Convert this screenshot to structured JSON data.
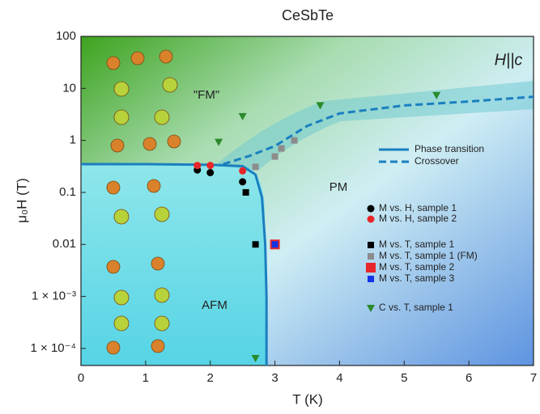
{
  "chart_data": {
    "type": "scatter",
    "title": "CeSbTe",
    "xlabel": "T (K)",
    "ylabel": "μ₀H (T)",
    "yscale": "log",
    "xlim": [
      0,
      7
    ],
    "ylim": [
      4.7e-05,
      100
    ],
    "xticks": [
      0,
      1,
      2,
      3,
      4,
      5,
      6,
      7
    ],
    "yticks": [
      100,
      10,
      1,
      0.1,
      0.01,
      {
        "value": 0.001,
        "label": "1 × 10⁻³"
      },
      {
        "value": 0.0001,
        "label": "1 × 10⁻⁴"
      }
    ],
    "annotations": [
      "H||c",
      "\"FM\"",
      "PM",
      "AFM"
    ],
    "series": [
      {
        "name": "Phase transition",
        "kind": "line",
        "linestyle": "solid",
        "color": "#1a7fc0",
        "x": [
          0,
          1,
          2,
          2.5,
          2.7,
          2.8,
          2.85,
          2.87,
          2.87
        ],
        "values": [
          0.35,
          0.35,
          0.34,
          0.32,
          0.22,
          0.08,
          0.01,
          0.001,
          4.7e-05
        ]
      },
      {
        "name": "Crossover",
        "kind": "line",
        "linestyle": "dashed",
        "color": "#1a7fc0",
        "x": [
          2.2,
          2.6,
          3,
          3.5,
          4,
          5,
          6,
          7
        ],
        "values": [
          0.35,
          0.5,
          0.78,
          1.9,
          3.3,
          4.7,
          5.6,
          6.9
        ]
      },
      {
        "name": "M vs. H, sample 1",
        "kind": "marker",
        "marker": "circle",
        "color": "#000000",
        "x": [
          1.8,
          2.0,
          2.5
        ],
        "values": [
          0.27,
          0.24,
          0.16
        ]
      },
      {
        "name": "M vs. H, sample 2",
        "kind": "marker",
        "marker": "circle",
        "color": "#e8262a",
        "x": [
          1.8,
          2.0,
          2.5
        ],
        "values": [
          0.33,
          0.33,
          0.26
        ]
      },
      {
        "name": "M vs. T, sample 1",
        "kind": "marker",
        "marker": "square",
        "color": "#000000",
        "x": [
          2.55,
          2.7
        ],
        "values": [
          0.1,
          0.01
        ]
      },
      {
        "name": "M vs. T, sample 1 (FM)",
        "kind": "marker",
        "marker": "square",
        "color": "#8c8c8c",
        "x": [
          2.7,
          3.0,
          3.1,
          3.3
        ],
        "values": [
          0.31,
          0.49,
          0.7,
          1.0
        ]
      },
      {
        "name": "M vs. T, sample 2",
        "kind": "marker",
        "marker": "bigsquare",
        "color": "#e8262a",
        "x": [
          3.0
        ],
        "values": [
          0.01
        ]
      },
      {
        "name": "M vs. T, sample 3",
        "kind": "marker",
        "marker": "square",
        "color": "#1433e6",
        "x": [
          3.0
        ],
        "values": [
          0.01
        ]
      },
      {
        "name": "C vs. T, sample 1",
        "kind": "marker",
        "marker": "triangle-down",
        "color": "#2a8a2a",
        "x": [
          2.13,
          2.5,
          3.7,
          5.5,
          2.7
        ],
        "values": [
          0.93,
          2.9,
          4.7,
          7.4,
          6.5e-05
        ]
      }
    ]
  }
}
